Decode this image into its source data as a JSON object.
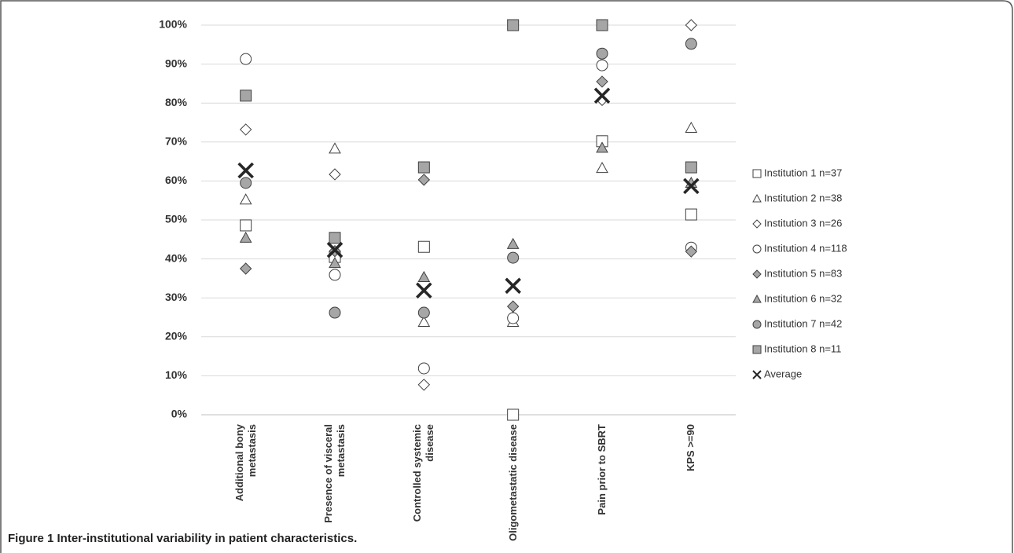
{
  "chart_data": {
    "type": "scatter",
    "caption": "Figure 1 Inter-institutional variability in patient characteristics.",
    "categories": [
      "Additional bony metastasis",
      "Presence of visceral metastasis",
      "Controlled systemic disease",
      "Oligometastatic disease",
      "Pain prior to SBRT",
      "KPS >=90"
    ],
    "ylim": [
      0,
      100
    ],
    "yticks": [
      {
        "value": 0,
        "label": "0%"
      },
      {
        "value": 10,
        "label": "10%"
      },
      {
        "value": 20,
        "label": "20%"
      },
      {
        "value": 30,
        "label": "30%"
      },
      {
        "value": 40,
        "label": "40%"
      },
      {
        "value": 50,
        "label": "50%"
      },
      {
        "value": 60,
        "label": "60%"
      },
      {
        "value": 70,
        "label": "70%"
      },
      {
        "value": 80,
        "label": "80%"
      },
      {
        "value": 90,
        "label": "90%"
      },
      {
        "value": 100,
        "label": "100%"
      }
    ],
    "grid": true,
    "legend": "right",
    "series": [
      {
        "name": "Institution 1 n=37",
        "marker": "square",
        "color": "#ffffff",
        "values": [
          48.6,
          40.5,
          43.1,
          0,
          70.2,
          51.4
        ]
      },
      {
        "name": "Institution 2 n=38",
        "marker": "triangle",
        "color": "#ffffff",
        "values": [
          55.2,
          68.3,
          23.8,
          23.8,
          63.3,
          73.6
        ]
      },
      {
        "name": "Institution 3 n=26",
        "marker": "diamond",
        "color": "#ffffff",
        "values": [
          73.2,
          61.7,
          7.7,
          25,
          80.8,
          100
        ]
      },
      {
        "name": "Institution 4 n=118",
        "marker": "circle",
        "color": "#ffffff",
        "values": [
          91.3,
          35.9,
          11.9,
          24.8,
          89.7,
          42.9
        ]
      },
      {
        "name": "Institution 5 n=83",
        "marker": "diamond",
        "color": "#a6a6a6",
        "values": [
          37.5,
          42,
          60.3,
          27.8,
          85.5,
          41.9
        ]
      },
      {
        "name": "Institution 6 n=32",
        "marker": "triangle",
        "color": "#a6a6a6",
        "values": [
          45.4,
          38.9,
          35.3,
          43.8,
          68.5,
          59.5
        ]
      },
      {
        "name": "Institution 7 n=42",
        "marker": "circle",
        "color": "#a6a6a6",
        "values": [
          59.5,
          26.2,
          26.2,
          40.3,
          92.7,
          95.2
        ]
      },
      {
        "name": "Institution 8 n=11",
        "marker": "square",
        "color": "#a6a6a6",
        "values": [
          81.9,
          45.4,
          63.5,
          100,
          100,
          63.5
        ]
      },
      {
        "name": "Average",
        "marker": "x",
        "color": "#262626",
        "values": [
          62.7,
          42.3,
          31.9,
          33.1,
          81.9,
          58.7
        ]
      }
    ]
  }
}
